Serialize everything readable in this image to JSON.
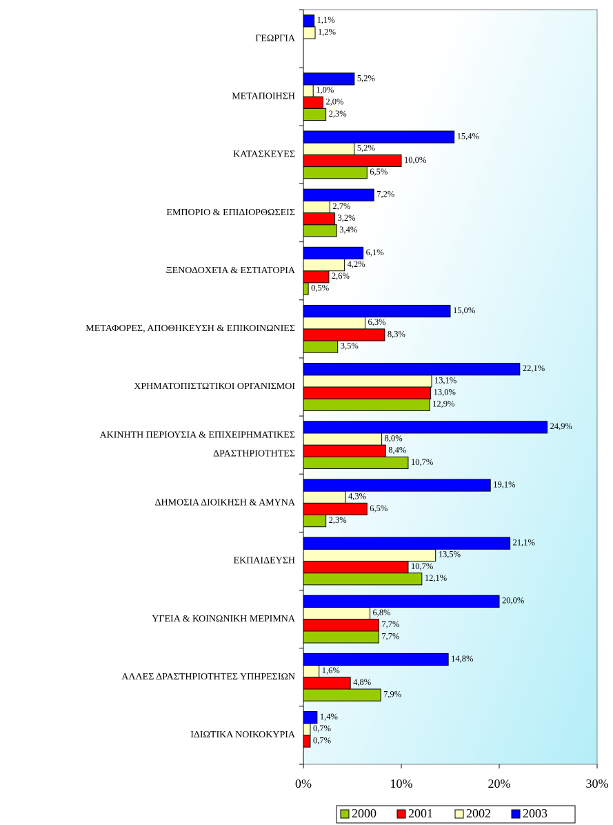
{
  "chart_data": {
    "type": "bar",
    "orientation": "horizontal",
    "categories": [
      "ΓΕΩΡΓΙΑ",
      "ΜΕΤΑΠΟΙΗΣΗ",
      "ΚΑΤΑΣΚΕΥΕΣ",
      "ΕΜΠΟΡΙΟ & ΕΠΙΔΙΟΡΘΩΣΕΙΣ",
      "ΞΕΝΟΔΟΧΕΊΑ & ΕΣΤΙΑΤΟΡΙΑ",
      "ΜΕΤΑΦΟΡΕΣ, ΑΠΟΘΗΚΕΥΣΗ & ΕΠΙΚΟΙΝΩΝΙΕΣ",
      "ΧΡΗΜΑΤΟΠΙΣΤΩΤΙΚΟΙ ΟΡΓΑΝΙΣΜΟΙ",
      [
        "ΑΚΙΝΗΤΗ ΠΕΡΙΟΥΣΙΑ & ΕΠΙΧΕΙΡΗΜΑΤΙΚΕΣ",
        "ΔΡΑΣΤΗΡΙΟΤΗΤΕΣ"
      ],
      "ΔΗΜΟΣΙΑ ΔΙΟΙΚΗΣΗ & ΑΜΥΝΑ",
      "ΕΚΠΑΙΔΕΥΣΗ",
      "ΥΓΕΙΑ & ΚΟΙΝΩΝΙΚΗ ΜΕΡΙΜΝΑ",
      "ΑΛΛΕΣ ΔΡΑΣΤΗΡΙΟΤΗΤΕΣ ΥΠΗΡΕΣΙΩΝ",
      "ΙΔΙΩΤΙΚΑ ΝΟΙΚΟΚΥΡΙΑ"
    ],
    "series": [
      {
        "name": "2000",
        "color": "#99cc00",
        "values": [
          null,
          2.3,
          6.5,
          3.4,
          0.5,
          3.5,
          12.9,
          10.7,
          2.3,
          12.1,
          7.7,
          7.9,
          null
        ],
        "value_labels": [
          null,
          "2,3%",
          "6,5%",
          "3,4%",
          "0,5%",
          "3,5%",
          "12,9%",
          "10,7%",
          "2,3%",
          "12,1%",
          "7,7%",
          "7,9%",
          null
        ]
      },
      {
        "name": "2001",
        "color": "#ff0000",
        "values": [
          null,
          2.0,
          10.0,
          3.2,
          2.6,
          8.3,
          13.0,
          8.4,
          6.5,
          10.7,
          7.7,
          4.8,
          0.7
        ],
        "value_labels": [
          null,
          "2,0%",
          "10,0%",
          "3,2%",
          "2,6%",
          "8,3%",
          "13,0%",
          "8,4%",
          "6,5%",
          "10,7%",
          "7,7%",
          "4,8%",
          "0,7%"
        ]
      },
      {
        "name": "2002",
        "color": "#ffffc0",
        "values": [
          1.2,
          1.0,
          5.2,
          2.7,
          4.2,
          6.3,
          13.1,
          8.0,
          4.3,
          13.5,
          6.8,
          1.6,
          0.7
        ],
        "value_labels": [
          "1,2%",
          "1,0%",
          "5,2%",
          "2,7%",
          "4,2%",
          "6,3%",
          "13,1%",
          "8,0%",
          "4,3%",
          "13,5%",
          "6,8%",
          "1,6%",
          "0,7%"
        ]
      },
      {
        "name": "2003",
        "color": "#0000ff",
        "values": [
          1.1,
          5.2,
          15.4,
          7.2,
          6.1,
          15.0,
          22.1,
          24.9,
          19.1,
          21.1,
          20.0,
          14.8,
          1.4
        ],
        "value_labels": [
          "1,1%",
          "5,2%",
          "15,4%",
          "7,2%",
          "6,1%",
          "15,0%",
          "22,1%",
          "24,9%",
          "19,1%",
          "21,1%",
          "20,0%",
          "14,8%",
          "1,4%"
        ]
      }
    ],
    "xlim": [
      0,
      30
    ],
    "xticks": [
      {
        "value": 0,
        "label": "0%"
      },
      {
        "value": 10,
        "label": "10%"
      },
      {
        "value": 20,
        "label": "20%"
      },
      {
        "value": 30,
        "label": "30%"
      }
    ],
    "legend": "bottom"
  }
}
